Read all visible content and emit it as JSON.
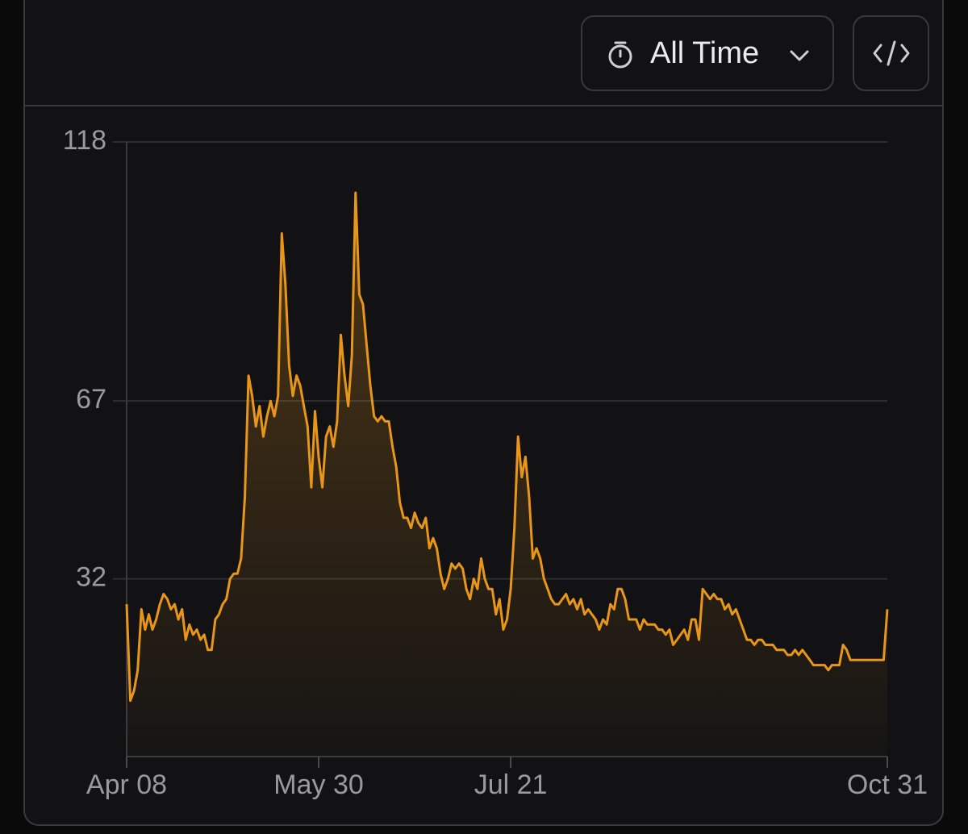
{
  "controls": {
    "range": "All Time"
  },
  "chart_data": {
    "type": "area",
    "categories": [
      "Apr 08",
      null,
      null,
      null,
      null,
      null,
      null,
      null,
      null,
      null,
      null,
      null,
      null,
      null,
      null,
      null,
      null,
      null,
      null,
      null,
      null,
      null,
      null,
      null,
      null,
      null,
      null,
      null,
      null,
      null,
      null,
      null,
      null,
      null,
      null,
      null,
      null,
      null,
      null,
      null,
      null,
      null,
      null,
      null,
      null,
      null,
      null,
      null,
      null,
      null,
      null,
      null,
      "May 30",
      null,
      null,
      null,
      null,
      null,
      null,
      null,
      null,
      null,
      null,
      null,
      null,
      null,
      null,
      null,
      null,
      null,
      null,
      null,
      null,
      null,
      null,
      null,
      null,
      null,
      null,
      null,
      null,
      null,
      null,
      null,
      null,
      null,
      null,
      null,
      null,
      null,
      null,
      null,
      null,
      null,
      null,
      null,
      null,
      null,
      null,
      null,
      null,
      null,
      null,
      null,
      "Jul 21",
      null,
      null,
      null,
      null,
      null,
      null,
      null,
      null,
      null,
      null,
      null,
      null,
      null,
      null,
      null,
      null,
      null,
      null,
      null,
      null,
      null,
      null,
      null,
      null,
      null,
      null,
      null,
      null,
      null,
      null,
      null,
      null,
      null,
      null,
      null,
      null,
      null,
      null,
      null,
      null,
      null,
      null,
      null,
      null,
      null,
      null,
      null,
      null,
      null,
      null,
      null,
      null,
      null,
      null,
      null,
      null,
      null,
      null,
      null,
      null,
      null,
      null,
      null,
      null,
      null,
      null,
      null,
      null,
      null,
      null,
      null,
      null,
      null,
      null,
      null,
      null,
      null,
      null,
      null,
      null,
      null,
      null,
      null,
      null,
      null,
      null,
      null,
      null,
      null,
      null,
      null,
      null,
      null,
      null,
      null,
      null,
      null,
      null,
      null,
      null,
      null,
      "Oct 31"
    ],
    "values": [
      27,
      8,
      10,
      14,
      26,
      22,
      25,
      22,
      24,
      27,
      29,
      28,
      26,
      27,
      24,
      26,
      20,
      23,
      21,
      22,
      20,
      21,
      18,
      18,
      24,
      25,
      27,
      28,
      32,
      33,
      33,
      36,
      48,
      72,
      68,
      62,
      66,
      60,
      64,
      67,
      64,
      68,
      100,
      90,
      74,
      68,
      72,
      70,
      66,
      62,
      50,
      65,
      56,
      50,
      60,
      62,
      58,
      63,
      80,
      72,
      66,
      76,
      108,
      88,
      86,
      78,
      70,
      64,
      63,
      64,
      63,
      63,
      58,
      54,
      47,
      44,
      44,
      42,
      45,
      43,
      42,
      44,
      38,
      40,
      38,
      33,
      30,
      32,
      35,
      34,
      35,
      34,
      30,
      28,
      32,
      30,
      36,
      32,
      30,
      30,
      25,
      28,
      22,
      24,
      30,
      42,
      60,
      52,
      56,
      48,
      36,
      38,
      36,
      32,
      30,
      28,
      27,
      27,
      28,
      29,
      27,
      28,
      26,
      28,
      25,
      26,
      25,
      24,
      22,
      24,
      23,
      27,
      26,
      30,
      30,
      28,
      24,
      24,
      24,
      22,
      24,
      23,
      23,
      23,
      22,
      22,
      21,
      22,
      19,
      20,
      21,
      22,
      20,
      24,
      24,
      20,
      30,
      29,
      28,
      29,
      28,
      28,
      26,
      27,
      25,
      26,
      24,
      22,
      20,
      20,
      19,
      20,
      20,
      19,
      19,
      19,
      18,
      18,
      18,
      17,
      17,
      18,
      17,
      18,
      17,
      16,
      15,
      15,
      15,
      15,
      14,
      15,
      15,
      15,
      19,
      18,
      16,
      16,
      16,
      16,
      16,
      16,
      16,
      16,
      16,
      16,
      26
    ],
    "color": "#e8961a",
    "ylim": [
      -3,
      118
    ],
    "yticks": [
      32,
      67,
      118
    ],
    "grid": true
  }
}
